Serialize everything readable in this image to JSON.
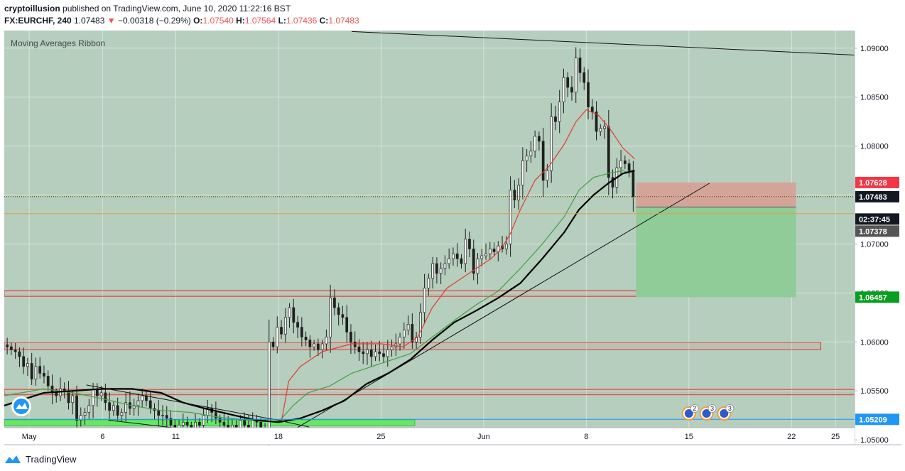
{
  "header": {
    "author": "cryptoillusion",
    "published_text": "published on TradingView.com, June 10, 2020 11:22:16 BST",
    "symbol": "FX:EURCHF, 240",
    "last": "1.07483",
    "change": "−0.00318 (−0.29%)",
    "o_label": "O:",
    "o_value": "1.07540",
    "h_label": "H:",
    "h_value": "1.07564",
    "l_label": "L:",
    "l_value": "1.07436",
    "c_label": "C:",
    "c_value": "1.07483"
  },
  "indicator_label": "Moving Averages Ribbon",
  "footer": {
    "brand": "TradingView"
  },
  "colors": {
    "background": "#b5cebd",
    "candle": "#1f1f1f",
    "ma_fast": "#e53935",
    "ma_mid": "#43a047",
    "ma_slow": "#000000",
    "zone_outline": "#e53935",
    "support_zone": "#66e866",
    "stop_zone": "#d4a49a",
    "target_zone": "#8fcc98"
  },
  "chart_data": {
    "type": "candlestick",
    "symbol": "FX:EURCHF",
    "timeframe": "240",
    "ylim": [
      1.0495,
      1.0918
    ],
    "y_ticks": [
      "1.09000",
      "1.08500",
      "1.08000",
      "1.07500",
      "1.07000",
      "1.06500",
      "1.06000",
      "1.05500",
      "1.05000"
    ],
    "x_ticks": [
      {
        "label": "May",
        "day": 0
      },
      {
        "label": "6",
        "day": 5
      },
      {
        "label": "11",
        "day": 10
      },
      {
        "label": "18",
        "day": 17
      },
      {
        "label": "25",
        "day": 24
      },
      {
        "label": "Jun",
        "day": 31
      },
      {
        "label": "8",
        "day": 38
      },
      {
        "label": "15",
        "day": 45
      },
      {
        "label": "22",
        "day": 52
      },
      {
        "label": "25",
        "day": 55
      }
    ],
    "x_range_days": [
      -1.7,
      56.3
    ],
    "closes": [
      1.0595,
      1.0592,
      1.059,
      1.0585,
      1.0575,
      1.0578,
      1.0562,
      1.0575,
      1.0568,
      1.0565,
      1.0555,
      1.0548,
      1.0545,
      1.0552,
      1.055,
      1.0538,
      1.0545,
      1.052,
      1.0525,
      1.0528,
      1.0535,
      1.0552,
      1.0545,
      1.0548,
      1.0538,
      1.053,
      1.0535,
      1.0525,
      1.0528,
      1.0538,
      1.0532,
      1.0535,
      1.054,
      1.0545,
      1.054,
      1.0532,
      1.053,
      1.0525,
      1.0525,
      1.0522,
      1.0515,
      1.0512,
      1.0515,
      1.0518,
      1.0515,
      1.0512,
      1.0518,
      1.0515,
      1.0525,
      1.0532,
      1.0528,
      1.0522,
      1.0518,
      1.0515,
      1.0508,
      1.0515,
      1.051,
      1.052,
      1.0515,
      1.0512,
      1.052,
      1.0518,
      1.0512,
      1.051,
      1.06,
      1.0595,
      1.0615,
      1.0608,
      1.0625,
      1.0635,
      1.062,
      1.0615,
      1.0605,
      1.0602,
      1.0595,
      1.0598,
      1.0592,
      1.0598,
      1.0605,
      1.0645,
      1.0635,
      1.0628,
      1.0625,
      1.061,
      1.06,
      1.0595,
      1.059,
      1.0588,
      1.0592,
      1.0585,
      1.059,
      1.0588,
      1.0585,
      1.0592,
      1.0595,
      1.0598,
      1.0605,
      1.0612,
      1.0618,
      1.06,
      1.0605,
      1.063,
      1.0655,
      1.0665,
      1.068,
      1.067,
      1.0675,
      1.068,
      1.0685,
      1.069,
      1.0685,
      1.068,
      1.0705,
      1.0695,
      1.067,
      1.0685,
      1.0688,
      1.069,
      1.0695,
      1.0692,
      1.0698,
      1.0695,
      1.07,
      1.0755,
      1.0745,
      1.076,
      1.0785,
      1.079,
      1.0795,
      1.081,
      1.0805,
      1.0765,
      1.0775,
      1.083,
      1.0825,
      1.0845,
      1.087,
      1.086,
      1.0855,
      1.089,
      1.0875,
      1.0865,
      1.084,
      1.0835,
      1.0815,
      1.0818,
      1.082,
      1.0768,
      1.0758,
      1.0778,
      1.0785,
      1.0782,
      1.0775,
      1.0748
    ],
    "ma_fast_path": [
      [
        17.2,
        1.0518
      ],
      [
        17.7,
        1.056
      ],
      [
        18.5,
        1.0575
      ],
      [
        20,
        1.059
      ],
      [
        22,
        1.0598
      ],
      [
        24,
        1.0598
      ],
      [
        25.5,
        1.0595
      ],
      [
        26.5,
        1.0605
      ],
      [
        27.5,
        1.0635
      ],
      [
        28.5,
        1.0655
      ],
      [
        29.5,
        1.0665
      ],
      [
        30.5,
        1.0675
      ],
      [
        31.5,
        1.0685
      ],
      [
        32.2,
        1.0695
      ],
      [
        32.8,
        1.071
      ],
      [
        33.5,
        1.0735
      ],
      [
        34.5,
        1.0765
      ],
      [
        35.5,
        1.078
      ],
      [
        36.5,
        1.0802
      ],
      [
        37.3,
        1.0825
      ],
      [
        38,
        1.0837
      ],
      [
        38.8,
        1.0832
      ],
      [
        39.6,
        1.0818
      ],
      [
        40.5,
        1.0798
      ],
      [
        41.3,
        1.0787
      ]
    ],
    "ma_mid_path": [
      [
        -1.7,
        1.0545
      ],
      [
        1,
        1.0552
      ],
      [
        3,
        1.0548
      ],
      [
        5,
        1.0542
      ],
      [
        7,
        1.0535
      ],
      [
        9,
        1.053
      ],
      [
        11,
        1.0528
      ],
      [
        13,
        1.0523
      ],
      [
        15,
        1.052
      ],
      [
        17,
        1.0518
      ],
      [
        18,
        1.0535
      ],
      [
        19,
        1.0548
      ],
      [
        20.5,
        1.0555
      ],
      [
        22,
        1.0568
      ],
      [
        24,
        1.0578
      ],
      [
        26,
        1.0588
      ],
      [
        27.5,
        1.0605
      ],
      [
        29,
        1.0622
      ],
      [
        30.5,
        1.0638
      ],
      [
        32,
        1.0652
      ],
      [
        33.5,
        1.0675
      ],
      [
        35,
        1.07
      ],
      [
        36.5,
        1.0728
      ],
      [
        37.5,
        1.0755
      ],
      [
        38.5,
        1.0768
      ],
      [
        39.5,
        1.0772
      ],
      [
        40.5,
        1.0775
      ],
      [
        41,
        1.0772
      ]
    ],
    "ma_slow_path": [
      [
        -1.7,
        1.0535
      ],
      [
        1,
        1.0548
      ],
      [
        3,
        1.055
      ],
      [
        5,
        1.0552
      ],
      [
        7,
        1.0552
      ],
      [
        9,
        1.0548
      ],
      [
        10.5,
        1.0538
      ],
      [
        12,
        1.0532
      ],
      [
        14,
        1.0525
      ],
      [
        15.5,
        1.052
      ],
      [
        17,
        1.0518
      ],
      [
        18.5,
        1.0522
      ],
      [
        20,
        1.053
      ],
      [
        21.5,
        1.054
      ],
      [
        23,
        1.0557
      ],
      [
        24.5,
        1.0568
      ],
      [
        26,
        1.0582
      ],
      [
        27.5,
        1.0602
      ],
      [
        29,
        1.062
      ],
      [
        30.5,
        1.0632
      ],
      [
        32,
        1.0645
      ],
      [
        33.5,
        1.066
      ],
      [
        35,
        1.0685
      ],
      [
        36.5,
        1.0712
      ],
      [
        37.5,
        1.0735
      ],
      [
        38.5,
        1.075
      ],
      [
        39.5,
        1.0762
      ],
      [
        40.5,
        1.0772
      ],
      [
        41.3,
        1.0775
      ]
    ],
    "zones": [
      {
        "name": "resistance-zone-upper",
        "y_top": 1.06525,
        "y_bottom": 1.06465,
        "x_start": -1.7,
        "x_end": 45.9
      },
      {
        "name": "resistance-zone-middle",
        "y_top": 1.05995,
        "y_bottom": 1.0592,
        "x_start": -1.7,
        "x_end": 54.0
      },
      {
        "name": "resistance-zone-lower",
        "y_top": 1.05515,
        "y_bottom": 1.0546,
        "x_start": -1.7,
        "x_end": 56.3
      },
      {
        "name": "support-zone",
        "y_top": 1.05205,
        "y_bottom": 1.05145,
        "x_start": -1.7,
        "x_end": 26.3
      }
    ],
    "trade": {
      "x_start": 41.4,
      "x_end": 52.3,
      "entry": 1.07378,
      "stop": 1.07628,
      "target": 1.06457
    },
    "trendlines": [
      {
        "name": "trendline-descending-top",
        "from": [
          22.0,
          1.0917
        ],
        "to": [
          56.3,
          1.0893
        ]
      },
      {
        "name": "trendline-ascending",
        "from": [
          17.0,
          1.0501
        ],
        "to": [
          46.4,
          1.0762
        ]
      },
      {
        "name": "trendline-wedge-upper",
        "from": [
          3.9,
          1.0556
        ],
        "to": [
          17.0,
          1.052
        ]
      },
      {
        "name": "trendline-wedge-lower",
        "from": [
          5.4,
          1.052
        ],
        "to": [
          17.0,
          1.05
        ]
      },
      {
        "name": "trendline-wedge-extension",
        "from": [
          17.0,
          1.052
        ],
        "to": [
          19.1,
          1.0513
        ]
      }
    ],
    "price_markers": [
      {
        "label": "1.07628",
        "value": 1.07628,
        "bg": "#f23645",
        "fg": "#ffffff"
      },
      {
        "label": "1.07483",
        "value": 1.07483,
        "bg": "#131722",
        "fg": "#ffffff"
      },
      {
        "label": "02:37:45",
        "value": 1.07378,
        "bg": "#131722",
        "fg": "#ffffff",
        "offset": 17
      },
      {
        "label": "1.07378",
        "value": 1.07378,
        "bg": "#555555",
        "fg": "#ffffff",
        "offset": 34
      },
      {
        "label": "1.06457",
        "value": 1.06457,
        "bg": "#089f1e",
        "fg": "#ffffff"
      },
      {
        "label": "1.05209",
        "value": 1.05209,
        "bg": "#2196f3",
        "fg": "#ffffff"
      }
    ],
    "last_price_line": 1.07483,
    "orange_line": 1.0731,
    "blue_line": 1.05209,
    "events": [
      {
        "icon": "eu-flag-icon",
        "count": "2",
        "day": 45.0
      },
      {
        "icon": "eu-flag-icon",
        "count": "3",
        "day": 46.2
      },
      {
        "icon": "eu-flag-icon",
        "count": "3",
        "day": 47.4
      }
    ]
  }
}
